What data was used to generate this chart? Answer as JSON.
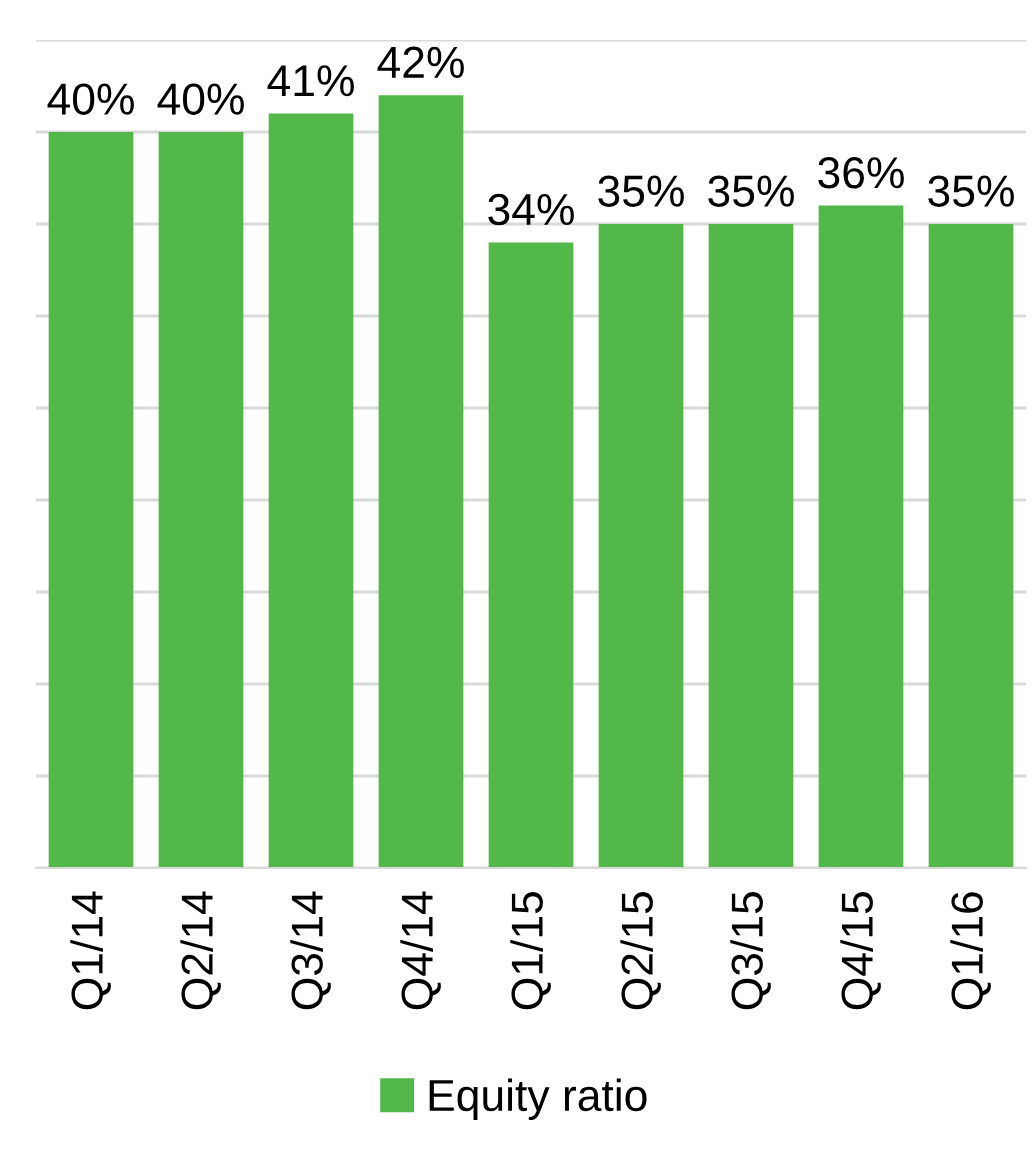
{
  "chart_data": {
    "type": "bar",
    "categories": [
      "Q1/14",
      "Q2/14",
      "Q3/14",
      "Q4/14",
      "Q1/15",
      "Q2/15",
      "Q3/15",
      "Q4/15",
      "Q1/16"
    ],
    "series": [
      {
        "name": "Equity ratio",
        "color": "#53b84a",
        "values": [
          40,
          40,
          41,
          42,
          34,
          35,
          35,
          36,
          35
        ],
        "value_labels": [
          "40%",
          "40%",
          "41%",
          "42%",
          "34%",
          "35%",
          "35%",
          "36%",
          "35%"
        ]
      }
    ],
    "ylim": [
      0,
      45
    ],
    "yticks": [
      {
        "value": 0,
        "label": null
      },
      {
        "value": 5,
        "label": null
      },
      {
        "value": 10,
        "label": null
      },
      {
        "value": 15,
        "label": null
      },
      {
        "value": 20,
        "label": null
      },
      {
        "value": 25,
        "label": null
      },
      {
        "value": 30,
        "label": null
      },
      {
        "value": 35,
        "label": null
      },
      {
        "value": 40,
        "label": null
      },
      {
        "value": 45,
        "label": null
      }
    ],
    "tick_labels": "x",
    "grid": "y",
    "legend": "bottom"
  }
}
